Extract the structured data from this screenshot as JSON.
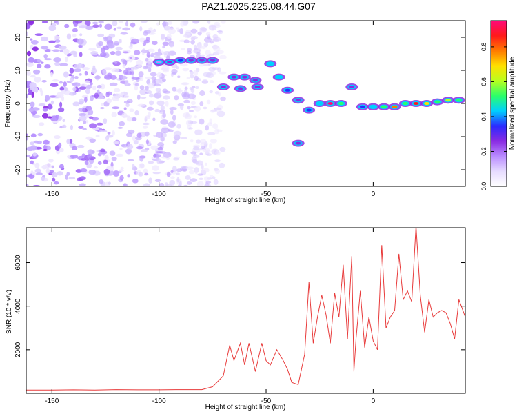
{
  "title": "PAZ1.2025.225.08.44.G07",
  "colors": {
    "line": "#e83a3a",
    "axis": "#000000",
    "colorbar": [
      "#ffffff",
      "#e6dbff",
      "#b98cff",
      "#8a2be2",
      "#2a2aff",
      "#00d0ff",
      "#2aff6a",
      "#b8ff1e",
      "#ffe000",
      "#ff7a00",
      "#ff1a1a",
      "#ff0a7a"
    ]
  },
  "chart_data": [
    {
      "type": "heatmap",
      "xlabel": "Height of straight line (km)",
      "ylabel": "Frequency (Hz)",
      "xlim": [
        -162,
        43
      ],
      "ylim": [
        -25,
        25
      ],
      "xticks": [
        -150,
        -100,
        -50,
        0
      ],
      "yticks": [
        -20,
        -10,
        0,
        10,
        20
      ],
      "xtick_labels": [
        "-150",
        "-100",
        "-50",
        "0"
      ],
      "ytick_labels": [
        "-20",
        "-10",
        "0",
        "10",
        "20"
      ],
      "colorbar": {
        "label": "Normalized spectral amplitude",
        "range": [
          0,
          0.95
        ],
        "ticks": [
          0.0,
          0.2,
          0.4,
          0.6,
          0.8
        ],
        "tick_labels": [
          "0.0",
          "0.2",
          "0.4",
          "0.6",
          "0.8"
        ]
      },
      "ridge": [
        {
          "x": -100,
          "y": 12.5,
          "a": 0.2
        },
        {
          "x": -95,
          "y": 12.5,
          "a": 0.25
        },
        {
          "x": -90,
          "y": 13,
          "a": 0.35
        },
        {
          "x": -85,
          "y": 13,
          "a": 0.3
        },
        {
          "x": -80,
          "y": 13,
          "a": 0.28
        },
        {
          "x": -75,
          "y": 13,
          "a": 0.3
        },
        {
          "x": -65,
          "y": 8,
          "a": 0.25
        },
        {
          "x": -60,
          "y": 8,
          "a": 0.22
        },
        {
          "x": -55,
          "y": 7,
          "a": 0.28
        },
        {
          "x": -70,
          "y": 5,
          "a": 0.3
        },
        {
          "x": -62,
          "y": 4.5,
          "a": 0.28
        },
        {
          "x": -54,
          "y": 5,
          "a": 0.3
        },
        {
          "x": -48,
          "y": 12,
          "a": 0.45
        },
        {
          "x": -44,
          "y": 8,
          "a": 0.4
        },
        {
          "x": -40,
          "y": 4,
          "a": 0.35
        },
        {
          "x": -35,
          "y": 1,
          "a": 0.3
        },
        {
          "x": -30,
          "y": -2,
          "a": 0.35
        },
        {
          "x": -25,
          "y": 0,
          "a": 0.45
        },
        {
          "x": -20,
          "y": 0,
          "a": 0.95
        },
        {
          "x": -15,
          "y": 0,
          "a": 0.55
        },
        {
          "x": -10,
          "y": 5,
          "a": 0.3
        },
        {
          "x": -5,
          "y": -1,
          "a": 0.35
        },
        {
          "x": 0,
          "y": -1,
          "a": 0.4
        },
        {
          "x": 5,
          "y": -1,
          "a": 0.55
        },
        {
          "x": 10,
          "y": -1,
          "a": 0.75
        },
        {
          "x": 15,
          "y": 0,
          "a": 0.55
        },
        {
          "x": 20,
          "y": 0,
          "a": 0.85
        },
        {
          "x": 25,
          "y": 0,
          "a": 0.65
        },
        {
          "x": 30,
          "y": 0.5,
          "a": 0.55
        },
        {
          "x": 35,
          "y": 1,
          "a": 0.6
        },
        {
          "x": 40,
          "y": 1,
          "a": 0.5
        },
        {
          "x": -35,
          "y": -12,
          "a": 0.3
        }
      ]
    },
    {
      "type": "line",
      "xlabel": "Height of straight line (km)",
      "ylabel": "SNR (10 * v/v)",
      "xlim": [
        -162,
        43
      ],
      "ylim": [
        0,
        7600
      ],
      "xticks": [
        -150,
        -100,
        -50,
        0
      ],
      "yticks": [
        2000,
        4000,
        6000
      ],
      "xtick_labels": [
        "-150",
        "-100",
        "-50",
        "0"
      ],
      "ytick_labels": [
        "2000",
        "4000",
        "6000"
      ],
      "series": [
        {
          "x": [
            -162,
            -150,
            -140,
            -130,
            -120,
            -110,
            -100,
            -90,
            -80,
            -75,
            -70,
            -67,
            -65,
            -62,
            -60,
            -58,
            -55,
            -52,
            -50,
            -48,
            -45,
            -42,
            -40,
            -38,
            -35,
            -32,
            -30,
            -28,
            -26,
            -24,
            -22,
            -20,
            -18,
            -16,
            -14,
            -12,
            -10,
            -9,
            -8,
            -6,
            -4,
            -2,
            0,
            2,
            4,
            6,
            8,
            10,
            12,
            14,
            16,
            18,
            20,
            22,
            24,
            26,
            28,
            30,
            32,
            34,
            36,
            38,
            40,
            43
          ],
          "y": [
            150,
            150,
            160,
            150,
            170,
            160,
            160,
            170,
            170,
            300,
            800,
            2200,
            1500,
            2300,
            1300,
            2300,
            1000,
            2300,
            1500,
            1300,
            2000,
            1500,
            1100,
            500,
            400,
            1800,
            5100,
            2300,
            3500,
            4500,
            3600,
            2300,
            4600,
            3500,
            5900,
            2500,
            6300,
            1000,
            2500,
            4700,
            2100,
            3500,
            2400,
            2000,
            6800,
            3000,
            3500,
            3800,
            6400,
            4300,
            4700,
            4200,
            7700,
            4500,
            2800,
            4300,
            3500,
            3700,
            3800,
            3700,
            3200,
            2500,
            4300,
            3500
          ]
        }
      ]
    }
  ]
}
